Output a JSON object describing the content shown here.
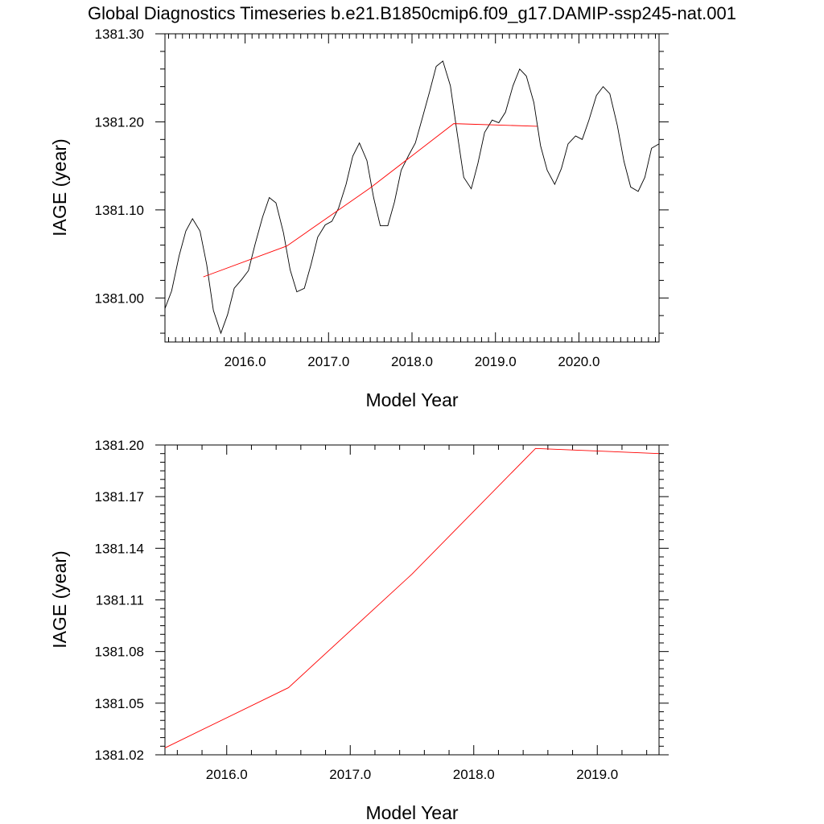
{
  "title": "Global Diagnostics Timeseries b.e21.B1850cmip6.f09_g17.DAMIP-ssp245-nat.001",
  "chart_data": [
    {
      "type": "line",
      "xlabel": "Model Year",
      "ylabel": "IAGE (year)",
      "xlim": [
        2015.04,
        2020.96
      ],
      "ylim": [
        1380.95,
        1381.3
      ],
      "xticks": [
        "2016.0",
        "2017.0",
        "2018.0",
        "2019.0",
        "2020.0"
      ],
      "xtick_values": [
        2016,
        2017,
        2018,
        2019,
        2020
      ],
      "yticks": [
        "1381.00",
        "1381.10",
        "1381.20",
        "1381.30"
      ],
      "ytick_values": [
        1381.0,
        1381.1,
        1381.2,
        1381.3
      ],
      "grid": false,
      "series": [
        {
          "color": "#000000",
          "x": [
            2015.04,
            2015.12,
            2015.21,
            2015.29,
            2015.37,
            2015.46,
            2015.54,
            2015.62,
            2015.71,
            2015.79,
            2015.87,
            2015.96,
            2016.04,
            2016.12,
            2016.21,
            2016.29,
            2016.37,
            2016.46,
            2016.54,
            2016.62,
            2016.71,
            2016.79,
            2016.87,
            2016.96,
            2017.04,
            2017.12,
            2017.21,
            2017.29,
            2017.37,
            2017.46,
            2017.54,
            2017.62,
            2017.71,
            2017.79,
            2017.87,
            2017.96,
            2018.04,
            2018.12,
            2018.21,
            2018.29,
            2018.37,
            2018.46,
            2018.54,
            2018.62,
            2018.71,
            2018.79,
            2018.87,
            2018.96,
            2019.04,
            2019.12,
            2019.21,
            2019.29,
            2019.37,
            2019.46,
            2019.54,
            2019.62,
            2019.71,
            2019.79,
            2019.87,
            2019.96,
            2020.04,
            2020.12,
            2020.21,
            2020.29,
            2020.37,
            2020.46,
            2020.54,
            2020.62,
            2020.71,
            2020.79,
            2020.87,
            2020.96
          ],
          "values": [
            1380.988,
            1381.008,
            1381.048,
            1381.076,
            1381.09,
            1381.076,
            1381.038,
            1380.986,
            1380.96,
            1380.981,
            1381.011,
            1381.021,
            1381.031,
            1381.061,
            1381.092,
            1381.114,
            1381.108,
            1381.074,
            1381.032,
            1381.007,
            1381.011,
            1381.038,
            1381.069,
            1381.083,
            1381.087,
            1381.102,
            1381.129,
            1381.161,
            1381.176,
            1381.156,
            1381.114,
            1381.082,
            1381.082,
            1381.109,
            1381.145,
            1381.162,
            1381.176,
            1381.203,
            1381.234,
            1381.263,
            1381.269,
            1381.241,
            1381.188,
            1381.137,
            1381.124,
            1381.153,
            1381.188,
            1381.202,
            1381.199,
            1381.211,
            1381.241,
            1381.26,
            1381.252,
            1381.222,
            1381.173,
            1381.145,
            1381.129,
            1381.147,
            1381.175,
            1381.184,
            1381.18,
            1381.202,
            1381.23,
            1381.24,
            1381.232,
            1381.196,
            1381.155,
            1381.126,
            1381.121,
            1381.137,
            1381.17,
            1381.175
          ]
        },
        {
          "color": "#ff0000",
          "x": [
            2015.5,
            2016.5,
            2017.5,
            2018.5,
            2019.5
          ],
          "values": [
            1381.024,
            1381.059,
            1381.125,
            1381.198,
            1381.195
          ]
        }
      ]
    },
    {
      "type": "line",
      "xlabel": "Model Year",
      "ylabel": "IAGE (year)",
      "xlim": [
        2015.5,
        2019.5
      ],
      "ylim": [
        1381.02,
        1381.2
      ],
      "xticks": [
        "2016.0",
        "2017.0",
        "2018.0",
        "2019.0"
      ],
      "xtick_values": [
        2016,
        2017,
        2018,
        2019
      ],
      "yticks": [
        "1381.02",
        "1381.05",
        "1381.08",
        "1381.11",
        "1381.14",
        "1381.17",
        "1381.20"
      ],
      "ytick_values": [
        1381.02,
        1381.05,
        1381.08,
        1381.11,
        1381.14,
        1381.17,
        1381.2
      ],
      "grid": false,
      "series": [
        {
          "color": "#ff0000",
          "x": [
            2015.5,
            2016.5,
            2017.5,
            2018.5,
            2019.5
          ],
          "values": [
            1381.024,
            1381.059,
            1381.125,
            1381.198,
            1381.195
          ]
        }
      ]
    }
  ]
}
